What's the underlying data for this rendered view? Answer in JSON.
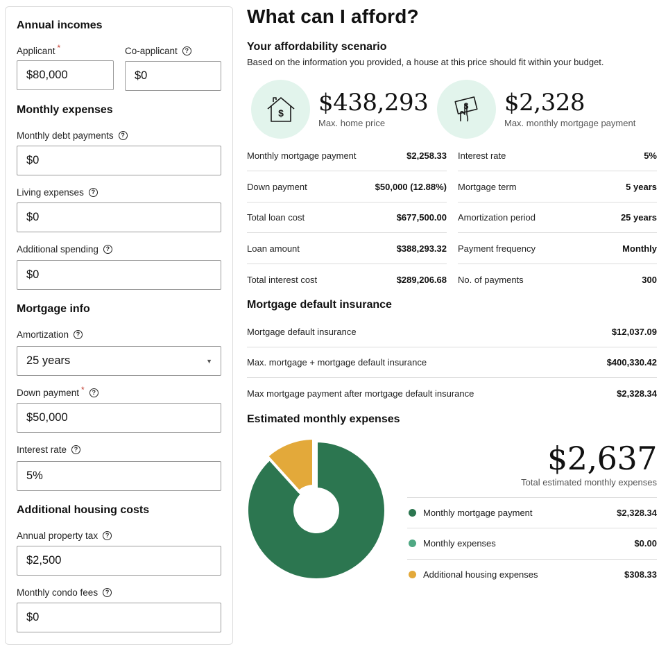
{
  "form": {
    "annual_incomes": {
      "title": "Annual incomes",
      "applicant_label": "Applicant",
      "applicant_value": "$80,000",
      "coapplicant_label": "Co-applicant",
      "coapplicant_value": "$0"
    },
    "monthly_expenses": {
      "title": "Monthly expenses",
      "debt_label": "Monthly debt payments",
      "debt_value": "$0",
      "living_label": "Living expenses",
      "living_value": "$0",
      "additional_label": "Additional spending",
      "additional_value": "$0"
    },
    "mortgage_info": {
      "title": "Mortgage info",
      "amortization_label": "Amortization",
      "amortization_value": "25 years",
      "down_payment_label": "Down payment",
      "down_payment_value": "$50,000",
      "interest_label": "Interest rate",
      "interest_value": "5%"
    },
    "additional_housing": {
      "title": "Additional housing costs",
      "property_tax_label": "Annual property tax",
      "property_tax_value": "$2,500",
      "condo_label": "Monthly condo fees",
      "condo_value": "$0"
    },
    "required_mark": "*",
    "help_glyph": "?"
  },
  "results": {
    "title": "What can I afford?",
    "scenario_title": "Your affordability scenario",
    "scenario_desc": "Based on the information you provided, a house at this price should fit within your budget.",
    "home_price": {
      "value": "$438,293",
      "caption": "Max. home price",
      "icon": "house-dollar-icon"
    },
    "monthly_payment": {
      "value": "$2,328",
      "caption": "Max. monthly mortgage payment",
      "icon": "hand-money-icon"
    },
    "details_left": [
      {
        "label": "Monthly mortgage payment",
        "value": "$2,258.33"
      },
      {
        "label": "Down payment",
        "value": "$50,000 (12.88%)"
      },
      {
        "label": "Total loan cost",
        "value": "$677,500.00"
      },
      {
        "label": "Loan amount",
        "value": "$388,293.32"
      },
      {
        "label": "Total interest cost",
        "value": "$289,206.68"
      }
    ],
    "details_right": [
      {
        "label": "Interest rate",
        "value": "5%"
      },
      {
        "label": "Mortgage term",
        "value": "5 years"
      },
      {
        "label": "Amortization period",
        "value": "25 years"
      },
      {
        "label": "Payment frequency",
        "value": "Monthly"
      },
      {
        "label": "No. of payments",
        "value": "300"
      }
    ],
    "insurance_title": "Mortgage default insurance",
    "insurance": [
      {
        "label": "Mortgage default insurance",
        "value": "$12,037.09"
      },
      {
        "label": "Max. mortgage + mortgage default insurance",
        "value": "$400,330.42"
      },
      {
        "label": "Max mortgage payment after mortgage default insurance",
        "value": "$2,328.34"
      }
    ],
    "expenses_title": "Estimated monthly expenses",
    "total_value": "$2,637",
    "total_caption": "Total estimated monthly expenses"
  },
  "chart_data": {
    "type": "pie",
    "categories": [
      "Monthly mortgage payment",
      "Monthly expenses",
      "Additional housing expenses"
    ],
    "values": [
      2328.34,
      0.0,
      308.33
    ],
    "display_values": [
      "$2,328.34",
      "$0.00",
      "$308.33"
    ],
    "colors": [
      "#2c7650",
      "#4fa883",
      "#e3a93a"
    ],
    "legend": "right"
  }
}
